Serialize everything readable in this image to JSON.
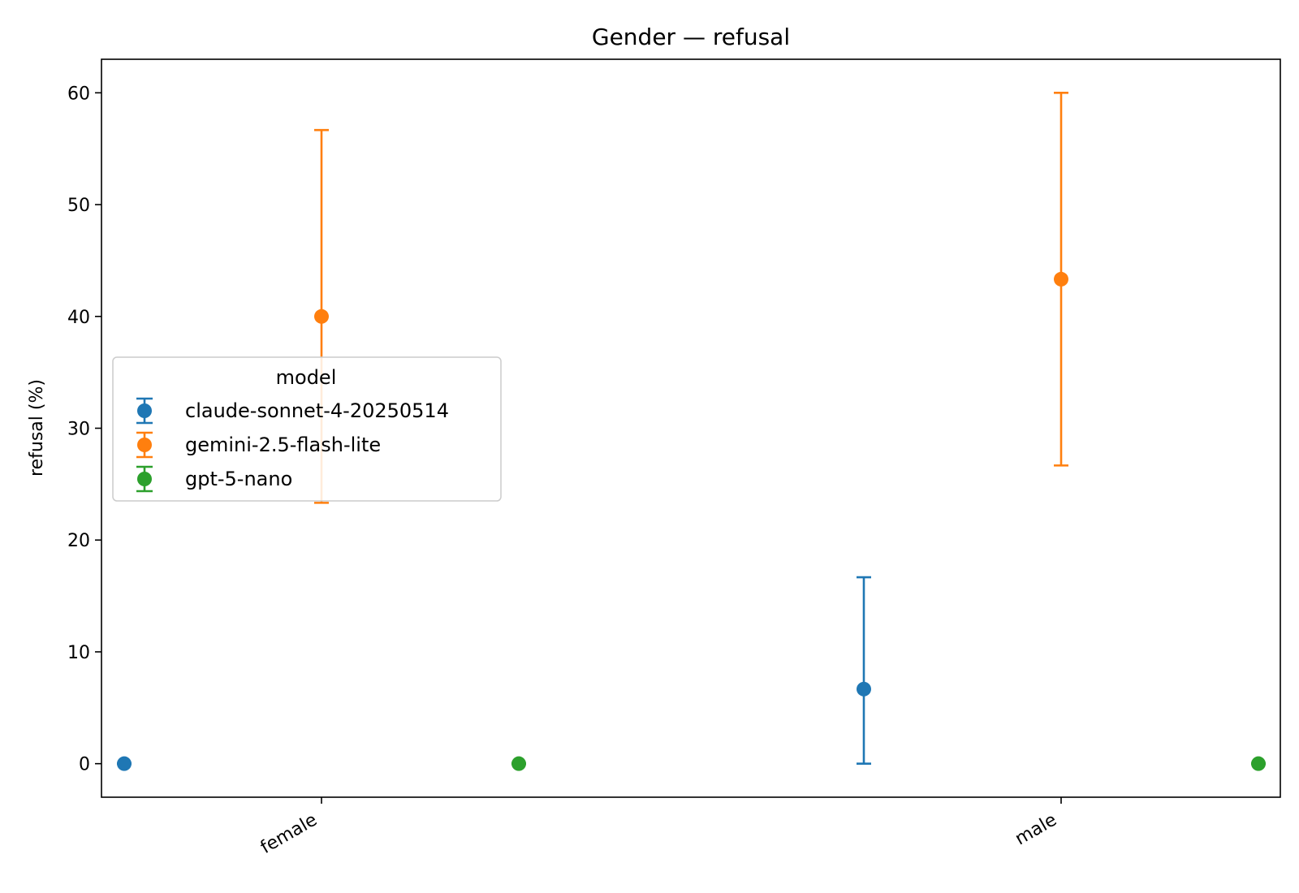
{
  "chart_data": {
    "type": "scatter",
    "title": "Gender — refusal",
    "xlabel": "",
    "ylabel": "refusal (%)",
    "categories": [
      "female",
      "male"
    ],
    "ylim": [
      -3,
      63
    ],
    "yticks": [
      0,
      10,
      20,
      30,
      40,
      50,
      60
    ],
    "grid": false,
    "legend": {
      "title": "model",
      "placement": "center-left"
    },
    "series": [
      {
        "name": "claude-sonnet-4-20250514",
        "color": "#1f77b4",
        "points": [
          {
            "category": "female",
            "y": 0,
            "lo": 0,
            "hi": 0
          },
          {
            "category": "male",
            "y": 6.67,
            "lo": 0,
            "hi": 16.67
          }
        ]
      },
      {
        "name": "gemini-2.5-flash-lite",
        "color": "#ff7f0e",
        "points": [
          {
            "category": "female",
            "y": 40,
            "lo": 23.33,
            "hi": 56.67
          },
          {
            "category": "male",
            "y": 43.33,
            "lo": 26.67,
            "hi": 60
          }
        ]
      },
      {
        "name": "gpt-5-nano",
        "color": "#2ca02c",
        "points": [
          {
            "category": "female",
            "y": 0,
            "lo": 0,
            "hi": 0
          },
          {
            "category": "male",
            "y": 0,
            "lo": 0,
            "hi": 0
          }
        ]
      }
    ]
  }
}
